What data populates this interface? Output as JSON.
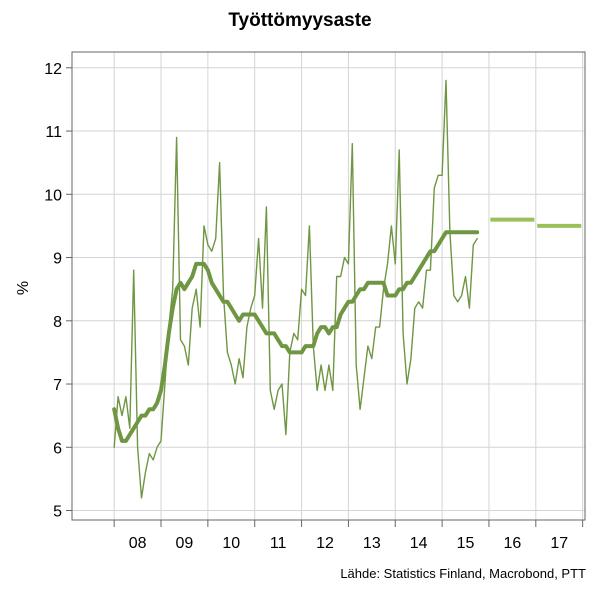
{
  "chart_data": {
    "type": "line",
    "title": "Työttömyysaste",
    "ylabel": "%",
    "xlabel": "",
    "source": "Lähde: Statistics Finland, Macrobond, PTT",
    "ylim": [
      4.8,
      12.3
    ],
    "yticks": [
      5,
      6,
      7,
      8,
      9,
      10,
      11,
      12
    ],
    "x_tick_labels": [
      "08",
      "09",
      "10",
      "11",
      "12",
      "13",
      "14",
      "15",
      "16",
      "17"
    ],
    "x_tick_years": [
      2008,
      2009,
      2010,
      2011,
      2012,
      2013,
      2014,
      2015,
      2016,
      2017
    ],
    "xlim": [
      2007.0,
      2018.1
    ],
    "grid": true,
    "colors": {
      "monthly": "#6f9642",
      "trend": "#6f9642",
      "forecast": "#9bc05a",
      "grid": "#d4d4d4",
      "axis": "#666666"
    },
    "series": [
      {
        "style": "monthly",
        "x_start": "2008-01",
        "frequency": "monthly",
        "values": [
          6.0,
          6.8,
          6.5,
          6.8,
          6.3,
          8.8,
          6.0,
          5.2,
          5.6,
          5.9,
          5.8,
          6.0,
          6.1,
          7.0,
          7.9,
          8.5,
          10.9,
          7.7,
          7.6,
          7.3,
          8.2,
          8.5,
          7.9,
          9.5,
          9.2,
          9.1,
          9.3,
          10.5,
          8.4,
          7.5,
          7.3,
          7.0,
          7.4,
          7.1,
          7.9,
          8.2,
          8.4,
          9.3,
          8.2,
          9.8,
          6.9,
          6.6,
          6.9,
          7.0,
          6.2,
          7.5,
          7.8,
          7.7,
          8.5,
          8.4,
          9.5,
          7.6,
          6.9,
          7.3,
          6.9,
          7.3,
          6.9,
          8.7,
          8.7,
          9.0,
          8.9,
          10.8,
          7.3,
          6.6,
          7.1,
          7.6,
          7.4,
          7.9,
          7.9,
          8.5,
          8.9,
          9.5,
          8.9,
          10.7,
          7.8,
          7.0,
          7.4,
          8.2,
          8.3,
          8.2,
          8.8,
          8.8,
          10.1,
          10.3,
          10.3,
          11.8,
          9.4,
          8.4,
          8.3,
          8.4,
          8.7,
          8.2,
          9.2,
          9.3
        ]
      },
      {
        "style": "trend",
        "x_start": "2008-01",
        "frequency": "monthly",
        "values": [
          6.6,
          6.3,
          6.1,
          6.1,
          6.2,
          6.3,
          6.4,
          6.5,
          6.5,
          6.6,
          6.6,
          6.7,
          6.9,
          7.3,
          7.8,
          8.2,
          8.5,
          8.6,
          8.5,
          8.6,
          8.7,
          8.9,
          8.9,
          8.9,
          8.8,
          8.6,
          8.5,
          8.4,
          8.3,
          8.3,
          8.2,
          8.1,
          8.0,
          8.1,
          8.1,
          8.1,
          8.1,
          8.0,
          7.9,
          7.8,
          7.8,
          7.8,
          7.7,
          7.6,
          7.6,
          7.5,
          7.5,
          7.5,
          7.5,
          7.6,
          7.6,
          7.6,
          7.8,
          7.9,
          7.9,
          7.8,
          7.9,
          7.9,
          8.1,
          8.2,
          8.3,
          8.3,
          8.4,
          8.5,
          8.5,
          8.6,
          8.6,
          8.6,
          8.6,
          8.6,
          8.4,
          8.4,
          8.4,
          8.5,
          8.5,
          8.6,
          8.6,
          8.7,
          8.8,
          8.9,
          9.0,
          9.1,
          9.1,
          9.2,
          9.3,
          9.4,
          9.4,
          9.4,
          9.4,
          9.4,
          9.4,
          9.4,
          9.4,
          9.4
        ]
      },
      {
        "style": "forecast",
        "segments": [
          {
            "x_from": "2016-01",
            "x_to": "2016-12",
            "value": 9.6
          },
          {
            "x_from": "2017-01",
            "x_to": "2017-12",
            "value": 9.5
          }
        ]
      }
    ]
  }
}
